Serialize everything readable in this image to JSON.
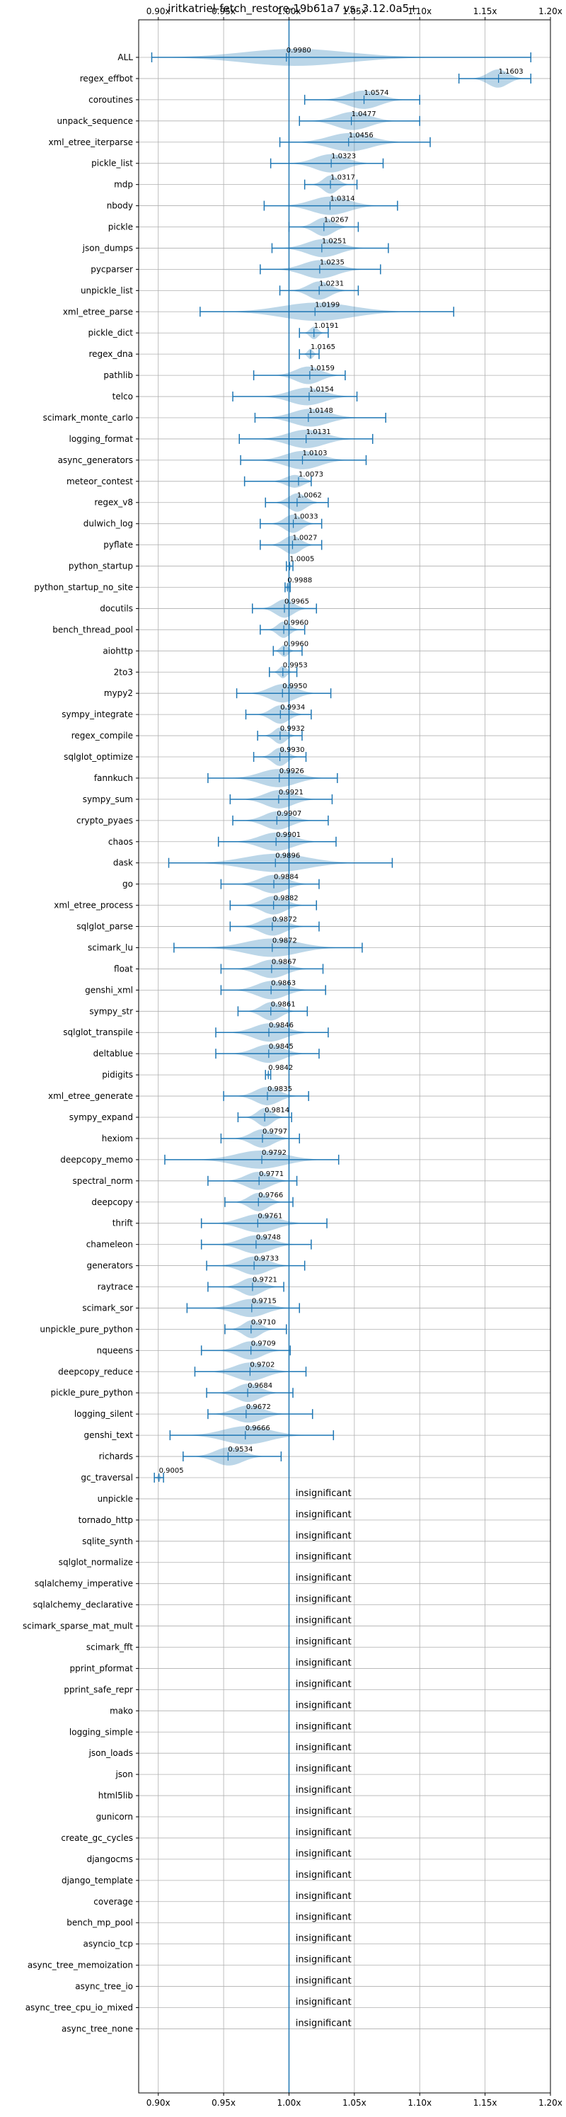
{
  "chart_data": {
    "type": "violin",
    "title": "iritkatriel-fetch_restore-19b61a7 vs. 3.12.0a5+",
    "xlim": [
      0.885,
      1.2
    ],
    "x_ticks": [
      0.9,
      0.95,
      1.0,
      1.05,
      1.1,
      1.15,
      1.2
    ],
    "x_tick_labels": [
      "0.90x",
      "0.95x",
      "1.00x",
      "1.05x",
      "1.10x",
      "1.15x",
      "1.20x"
    ],
    "reference_x": 1.0,
    "grid": true,
    "insignificant_label": "insignificant",
    "benchmarks": [
      {
        "name": "ALL",
        "mean": 0.998,
        "label": "0.9980",
        "min": 0.895,
        "max": 1.185
      },
      {
        "name": "regex_effbot",
        "mean": 1.1603,
        "label": "1.1603",
        "min": 1.13,
        "max": 1.185
      },
      {
        "name": "coroutines",
        "mean": 1.0574,
        "label": "1.0574",
        "min": 1.012,
        "max": 1.1
      },
      {
        "name": "unpack_sequence",
        "mean": 1.0477,
        "label": "1.0477",
        "min": 1.008,
        "max": 1.1
      },
      {
        "name": "xml_etree_iterparse",
        "mean": 1.0456,
        "label": "1.0456",
        "min": 0.993,
        "max": 1.108
      },
      {
        "name": "pickle_list",
        "mean": 1.0323,
        "label": "1.0323",
        "min": 0.986,
        "max": 1.072
      },
      {
        "name": "mdp",
        "mean": 1.0317,
        "label": "1.0317",
        "min": 1.012,
        "max": 1.052
      },
      {
        "name": "nbody",
        "mean": 1.0314,
        "label": "1.0314",
        "min": 0.981,
        "max": 1.083
      },
      {
        "name": "pickle",
        "mean": 1.0267,
        "label": "1.0267",
        "min": 1.0,
        "max": 1.053
      },
      {
        "name": "json_dumps",
        "mean": 1.0251,
        "label": "1.0251",
        "min": 0.987,
        "max": 1.076
      },
      {
        "name": "pycparser",
        "mean": 1.0235,
        "label": "1.0235",
        "min": 0.978,
        "max": 1.07
      },
      {
        "name": "unpickle_list",
        "mean": 1.0231,
        "label": "1.0231",
        "min": 0.993,
        "max": 1.053
      },
      {
        "name": "xml_etree_parse",
        "mean": 1.0199,
        "label": "1.0199",
        "min": 0.932,
        "max": 1.126
      },
      {
        "name": "pickle_dict",
        "mean": 1.0191,
        "label": "1.0191",
        "min": 1.008,
        "max": 1.03
      },
      {
        "name": "regex_dna",
        "mean": 1.0165,
        "label": "1.0165",
        "min": 1.008,
        "max": 1.023
      },
      {
        "name": "pathlib",
        "mean": 1.0159,
        "label": "1.0159",
        "min": 0.973,
        "max": 1.043
      },
      {
        "name": "telco",
        "mean": 1.0154,
        "label": "1.0154",
        "min": 0.957,
        "max": 1.052
      },
      {
        "name": "scimark_monte_carlo",
        "mean": 1.0148,
        "label": "1.0148",
        "min": 0.974,
        "max": 1.074
      },
      {
        "name": "logging_format",
        "mean": 1.0131,
        "label": "1.0131",
        "min": 0.962,
        "max": 1.064
      },
      {
        "name": "async_generators",
        "mean": 1.0103,
        "label": "1.0103",
        "min": 0.963,
        "max": 1.059
      },
      {
        "name": "meteor_contest",
        "mean": 1.0073,
        "label": "1.0073",
        "min": 0.966,
        "max": 1.017
      },
      {
        "name": "regex_v8",
        "mean": 1.0062,
        "label": "1.0062",
        "min": 0.982,
        "max": 1.03
      },
      {
        "name": "dulwich_log",
        "mean": 1.0033,
        "label": "1.0033",
        "min": 0.978,
        "max": 1.025
      },
      {
        "name": "pyflate",
        "mean": 1.0027,
        "label": "1.0027",
        "min": 0.978,
        "max": 1.025
      },
      {
        "name": "python_startup",
        "mean": 1.0005,
        "label": "1.0005",
        "min": 0.998,
        "max": 1.003
      },
      {
        "name": "python_startup_no_site",
        "mean": 0.9988,
        "label": "0.9988",
        "min": 0.997,
        "max": 1.001
      },
      {
        "name": "docutils",
        "mean": 0.9965,
        "label": "0.9965",
        "min": 0.972,
        "max": 1.021
      },
      {
        "name": "bench_thread_pool",
        "mean": 0.996,
        "label": "0.9960",
        "min": 0.978,
        "max": 1.012
      },
      {
        "name": "aiohttp",
        "mean": 0.996,
        "label": "0.9960",
        "min": 0.988,
        "max": 1.01
      },
      {
        "name": "2to3",
        "mean": 0.9953,
        "label": "0.9953",
        "min": 0.985,
        "max": 1.006
      },
      {
        "name": "mypy2",
        "mean": 0.995,
        "label": "0.9950",
        "min": 0.96,
        "max": 1.032
      },
      {
        "name": "sympy_integrate",
        "mean": 0.9934,
        "label": "0.9934",
        "min": 0.967,
        "max": 1.017
      },
      {
        "name": "regex_compile",
        "mean": 0.9932,
        "label": "0.9932",
        "min": 0.976,
        "max": 1.01
      },
      {
        "name": "sqlglot_optimize",
        "mean": 0.993,
        "label": "0.9930",
        "min": 0.973,
        "max": 1.013
      },
      {
        "name": "fannkuch",
        "mean": 0.9926,
        "label": "0.9926",
        "min": 0.938,
        "max": 1.037
      },
      {
        "name": "sympy_sum",
        "mean": 0.9921,
        "label": "0.9921",
        "min": 0.955,
        "max": 1.033
      },
      {
        "name": "crypto_pyaes",
        "mean": 0.9907,
        "label": "0.9907",
        "min": 0.957,
        "max": 1.03
      },
      {
        "name": "chaos",
        "mean": 0.9901,
        "label": "0.9901",
        "min": 0.946,
        "max": 1.036
      },
      {
        "name": "dask",
        "mean": 0.9896,
        "label": "0.9896",
        "min": 0.908,
        "max": 1.079
      },
      {
        "name": "go",
        "mean": 0.9884,
        "label": "0.9884",
        "min": 0.948,
        "max": 1.023
      },
      {
        "name": "xml_etree_process",
        "mean": 0.9882,
        "label": "0.9882",
        "min": 0.955,
        "max": 1.021
      },
      {
        "name": "sqlglot_parse",
        "mean": 0.9872,
        "label": "0.9872",
        "min": 0.955,
        "max": 1.023
      },
      {
        "name": "scimark_lu",
        "mean": 0.9872,
        "label": "0.9872",
        "min": 0.912,
        "max": 1.056
      },
      {
        "name": "float",
        "mean": 0.9867,
        "label": "0.9867",
        "min": 0.948,
        "max": 1.026
      },
      {
        "name": "genshi_xml",
        "mean": 0.9863,
        "label": "0.9863",
        "min": 0.948,
        "max": 1.028
      },
      {
        "name": "sympy_str",
        "mean": 0.9861,
        "label": "0.9861",
        "min": 0.961,
        "max": 1.014
      },
      {
        "name": "sqlglot_transpile",
        "mean": 0.9846,
        "label": "0.9846",
        "min": 0.944,
        "max": 1.03
      },
      {
        "name": "deltablue",
        "mean": 0.9845,
        "label": "0.9845",
        "min": 0.944,
        "max": 1.023
      },
      {
        "name": "pidigits",
        "mean": 0.9842,
        "label": "0.9842",
        "min": 0.982,
        "max": 0.986
      },
      {
        "name": "xml_etree_generate",
        "mean": 0.9835,
        "label": "0.9835",
        "min": 0.95,
        "max": 1.015
      },
      {
        "name": "sympy_expand",
        "mean": 0.9814,
        "label": "0.9814",
        "min": 0.961,
        "max": 1.002
      },
      {
        "name": "hexiom",
        "mean": 0.9797,
        "label": "0.9797",
        "min": 0.948,
        "max": 1.008
      },
      {
        "name": "deepcopy_memo",
        "mean": 0.9792,
        "label": "0.9792",
        "min": 0.905,
        "max": 1.038
      },
      {
        "name": "spectral_norm",
        "mean": 0.9771,
        "label": "0.9771",
        "min": 0.938,
        "max": 1.006
      },
      {
        "name": "deepcopy",
        "mean": 0.9766,
        "label": "0.9766",
        "min": 0.951,
        "max": 1.003
      },
      {
        "name": "thrift",
        "mean": 0.9761,
        "label": "0.9761",
        "min": 0.933,
        "max": 1.029
      },
      {
        "name": "chameleon",
        "mean": 0.9748,
        "label": "0.9748",
        "min": 0.933,
        "max": 1.017
      },
      {
        "name": "generators",
        "mean": 0.9733,
        "label": "0.9733",
        "min": 0.937,
        "max": 1.012
      },
      {
        "name": "raytrace",
        "mean": 0.9721,
        "label": "0.9721",
        "min": 0.938,
        "max": 0.996
      },
      {
        "name": "scimark_sor",
        "mean": 0.9715,
        "label": "0.9715",
        "min": 0.922,
        "max": 1.008
      },
      {
        "name": "unpickle_pure_python",
        "mean": 0.971,
        "label": "0.9710",
        "min": 0.951,
        "max": 0.998
      },
      {
        "name": "nqueens",
        "mean": 0.9709,
        "label": "0.9709",
        "min": 0.933,
        "max": 1.001
      },
      {
        "name": "deepcopy_reduce",
        "mean": 0.9702,
        "label": "0.9702",
        "min": 0.928,
        "max": 1.013
      },
      {
        "name": "pickle_pure_python",
        "mean": 0.9684,
        "label": "0.9684",
        "min": 0.937,
        "max": 1.003
      },
      {
        "name": "logging_silent",
        "mean": 0.9672,
        "label": "0.9672",
        "min": 0.938,
        "max": 1.018
      },
      {
        "name": "genshi_text",
        "mean": 0.9666,
        "label": "0.9666",
        "min": 0.909,
        "max": 1.034
      },
      {
        "name": "richards",
        "mean": 0.9534,
        "label": "0.9534",
        "min": 0.919,
        "max": 0.994
      },
      {
        "name": "gc_traversal",
        "mean": 0.9005,
        "label": "0.9005",
        "min": 0.897,
        "max": 0.904
      },
      {
        "name": "unpickle",
        "insignificant": true
      },
      {
        "name": "tornado_http",
        "insignificant": true
      },
      {
        "name": "sqlite_synth",
        "insignificant": true
      },
      {
        "name": "sqlglot_normalize",
        "insignificant": true
      },
      {
        "name": "sqlalchemy_imperative",
        "insignificant": true
      },
      {
        "name": "sqlalchemy_declarative",
        "insignificant": true
      },
      {
        "name": "scimark_sparse_mat_mult",
        "insignificant": true
      },
      {
        "name": "scimark_fft",
        "insignificant": true
      },
      {
        "name": "pprint_pformat",
        "insignificant": true
      },
      {
        "name": "pprint_safe_repr",
        "insignificant": true
      },
      {
        "name": "mako",
        "insignificant": true
      },
      {
        "name": "logging_simple",
        "insignificant": true
      },
      {
        "name": "json_loads",
        "insignificant": true
      },
      {
        "name": "json",
        "insignificant": true
      },
      {
        "name": "html5lib",
        "insignificant": true
      },
      {
        "name": "gunicorn",
        "insignificant": true
      },
      {
        "name": "create_gc_cycles",
        "insignificant": true
      },
      {
        "name": "djangocms",
        "insignificant": true
      },
      {
        "name": "django_template",
        "insignificant": true
      },
      {
        "name": "coverage",
        "insignificant": true
      },
      {
        "name": "bench_mp_pool",
        "insignificant": true
      },
      {
        "name": "asyncio_tcp",
        "insignificant": true
      },
      {
        "name": "async_tree_memoization",
        "insignificant": true
      },
      {
        "name": "async_tree_io",
        "insignificant": true
      },
      {
        "name": "async_tree_cpu_io_mixed",
        "insignificant": true
      },
      {
        "name": "async_tree_none",
        "insignificant": true
      }
    ]
  }
}
